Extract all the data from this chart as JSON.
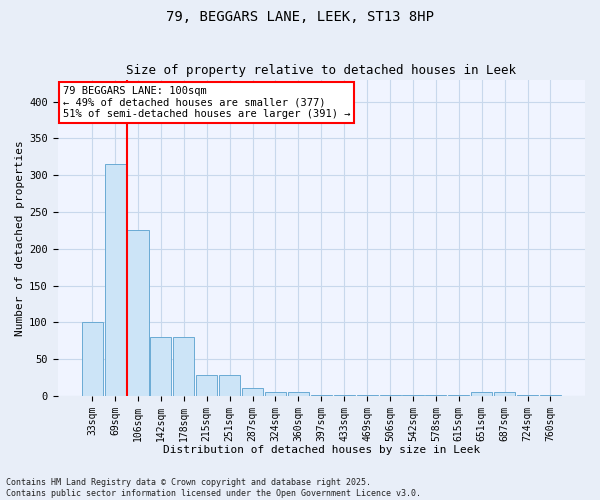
{
  "title": "79, BEGGARS LANE, LEEK, ST13 8HP",
  "subtitle": "Size of property relative to detached houses in Leek",
  "xlabel": "Distribution of detached houses by size in Leek",
  "ylabel": "Number of detached properties",
  "categories": [
    "33sqm",
    "69sqm",
    "106sqm",
    "142sqm",
    "178sqm",
    "215sqm",
    "251sqm",
    "287sqm",
    "324sqm",
    "360sqm",
    "397sqm",
    "433sqm",
    "469sqm",
    "506sqm",
    "542sqm",
    "578sqm",
    "615sqm",
    "651sqm",
    "687sqm",
    "724sqm",
    "760sqm"
  ],
  "values": [
    100,
    315,
    225,
    80,
    80,
    28,
    28,
    11,
    5,
    5,
    1,
    1,
    1,
    1,
    1,
    1,
    1,
    5,
    5,
    1,
    1
  ],
  "bar_color": "#cce4f7",
  "bar_edge_color": "#6aaad4",
  "red_line_x": 1.5,
  "annotation_line1": "79 BEGGARS LANE: 100sqm",
  "annotation_line2": "← 49% of detached houses are smaller (377)",
  "annotation_line3": "51% of semi-detached houses are larger (391) →",
  "annotation_box_facecolor": "white",
  "annotation_box_edgecolor": "red",
  "red_line_color": "red",
  "ylim": [
    0,
    430
  ],
  "yticks": [
    0,
    50,
    100,
    150,
    200,
    250,
    300,
    350,
    400
  ],
  "footer_line1": "Contains HM Land Registry data © Crown copyright and database right 2025.",
  "footer_line2": "Contains public sector information licensed under the Open Government Licence v3.0.",
  "fig_facecolor": "#e8eef8",
  "plot_facecolor": "#f0f4ff",
  "grid_color": "#c8d8ec",
  "title_fontsize": 10,
  "subtitle_fontsize": 9,
  "tick_fontsize": 7,
  "label_fontsize": 8,
  "annot_fontsize": 7.5,
  "footer_fontsize": 6
}
